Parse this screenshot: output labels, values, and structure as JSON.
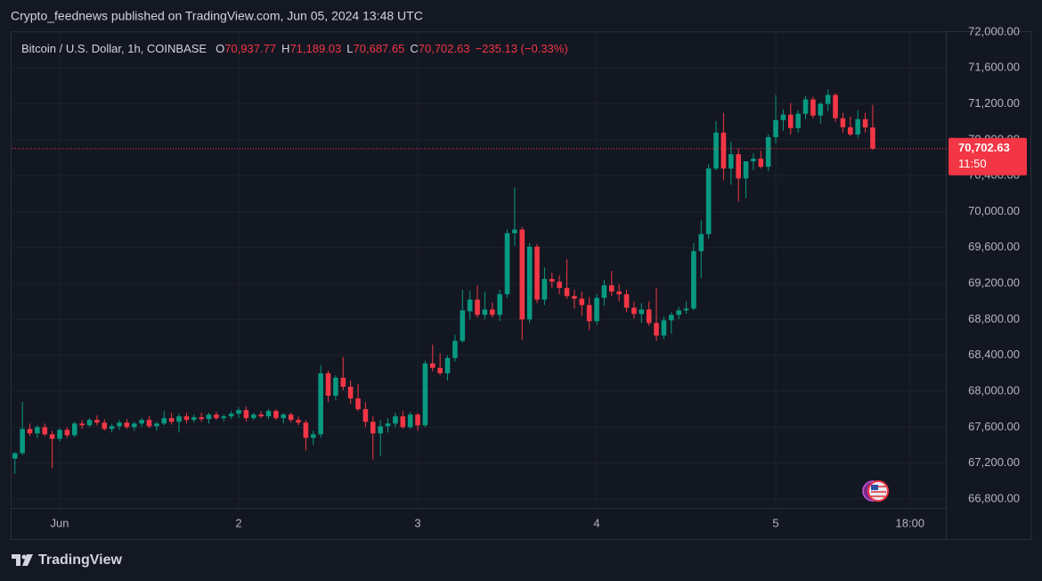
{
  "chart_data": {
    "type": "candlestick",
    "header": "Crypto_feednews published on TradingView.com, Jun 05, 2024 13:48 UTC",
    "symbol": "Bitcoin / U.S. Dollar, 1h, COINBASE",
    "ohlc_legend": [
      {
        "key": "O",
        "value": "70,937.77"
      },
      {
        "key": "H",
        "value": "71,189.03"
      },
      {
        "key": "L",
        "value": "70,687.65"
      },
      {
        "key": "C",
        "value": "70,702.63"
      }
    ],
    "change": "−235.13 (−0.33%)",
    "last_price": {
      "value": 70702.63,
      "label": "70,702.63"
    },
    "countdown": "11:50",
    "brand": "TradingView",
    "up_color": "#089981",
    "down_color": "#f23645",
    "grid": true,
    "x": [
      -6,
      -5,
      -4,
      -3,
      -2,
      -1,
      0,
      1,
      2,
      3,
      4,
      5,
      6,
      7,
      8,
      9,
      10,
      11,
      12,
      13,
      14,
      15,
      16,
      17,
      18,
      19,
      20,
      21,
      22,
      23,
      24,
      25,
      26,
      27,
      28,
      29,
      30,
      31,
      32,
      33,
      34,
      35,
      36,
      37,
      38,
      39,
      40,
      41,
      42,
      43,
      44,
      45,
      46,
      47,
      48,
      49,
      50,
      51,
      52,
      53,
      54,
      55,
      56,
      57,
      58,
      59,
      60,
      61,
      62,
      63,
      64,
      65,
      66,
      67,
      68,
      69,
      70,
      71,
      72,
      73,
      74,
      75,
      76,
      77,
      78,
      79,
      80,
      81,
      82,
      83,
      84,
      85,
      86,
      87,
      88,
      89,
      90,
      91,
      92,
      93,
      94,
      95,
      96,
      97,
      98,
      99,
      100,
      101,
      102,
      103,
      104,
      105,
      106,
      107,
      108,
      109
    ],
    "open": [
      67250,
      67310,
      67580,
      67530,
      67600,
      67520,
      67470,
      67570,
      67510,
      67640,
      67620,
      67680,
      67650,
      67580,
      67610,
      67650,
      67600,
      67640,
      67680,
      67610,
      67640,
      67700,
      67660,
      67720,
      67680,
      67710,
      67690,
      67740,
      67700,
      67720,
      67750,
      67790,
      67700,
      67740,
      67720,
      67780,
      67700,
      67740,
      67680,
      67650,
      67480,
      67520,
      68200,
      67950,
      68150,
      68050,
      67920,
      67800,
      67660,
      67530,
      67610,
      67640,
      67720,
      67600,
      67740,
      67620,
      68310,
      68260,
      68200,
      68370,
      68560,
      68890,
      69020,
      68850,
      68910,
      68850,
      69080,
      69760,
      69800,
      68800,
      69610,
      69020,
      69250,
      69220,
      69150,
      69060,
      69030,
      68960,
      68780,
      69040,
      69180,
      69110,
      69080,
      68930,
      68860,
      68910,
      68760,
      68620,
      68790,
      68850,
      68900,
      68920,
      69560,
      69750,
      70480,
      70880,
      70480,
      70640,
      70370,
      70560,
      70590,
      70500,
      70830,
      71020,
      71080,
      70930,
      71090,
      71250,
      71070,
      71200,
      71300,
      71040,
      70940,
      70860,
      71030,
      70937.77
    ],
    "high": [
      67320,
      67880,
      67640,
      67620,
      67640,
      67560,
      67590,
      67600,
      67660,
      67680,
      67700,
      67730,
      67690,
      67640,
      67680,
      67690,
      67660,
      67700,
      67720,
      67660,
      67780,
      67760,
      67750,
      67760,
      67740,
      67760,
      67760,
      67770,
      67740,
      67780,
      67820,
      67830,
      67760,
      67780,
      67800,
      67800,
      67760,
      67760,
      67720,
      67680,
      67560,
      68290,
      68230,
      68180,
      68380,
      68120,
      68080,
      67880,
      67720,
      67680,
      67700,
      67760,
      67780,
      67770,
      67760,
      68340,
      68520,
      68420,
      68400,
      68630,
      69130,
      69120,
      69180,
      69110,
      68990,
      69130,
      69800,
      70270,
      69830,
      69650,
      69640,
      69380,
      69320,
      69290,
      69470,
      69130,
      69110,
      69050,
      69080,
      69240,
      69340,
      69190,
      69130,
      69000,
      68980,
      69000,
      69150,
      68830,
      68880,
      68940,
      69000,
      69650,
      69900,
      70530,
      71010,
      71100,
      70780,
      70700,
      70560,
      70650,
      70680,
      70860,
      71300,
      71140,
      71210,
      71130,
      71290,
      71280,
      71220,
      71360,
      71320,
      71100,
      71060,
      71130,
      71100,
      71189.03
    ],
    "low": [
      67080,
      67290,
      67500,
      67480,
      67500,
      67140,
      67440,
      67480,
      67490,
      67580,
      67600,
      67620,
      67560,
      67540,
      67570,
      67580,
      67560,
      67600,
      67590,
      67560,
      67620,
      67630,
      67540,
      67640,
      67650,
      67660,
      67640,
      67680,
      67660,
      67690,
      67700,
      67660,
      67680,
      67700,
      67690,
      67680,
      67640,
      67650,
      67620,
      67340,
      67400,
      67480,
      67880,
      67900,
      68010,
      67860,
      67780,
      67600,
      67240,
      67280,
      67540,
      67600,
      67580,
      67580,
      67560,
      67600,
      68220,
      68180,
      68120,
      68330,
      68540,
      68800,
      68820,
      68800,
      68820,
      68780,
      69040,
      69620,
      68570,
      68760,
      68980,
      68960,
      69150,
      69080,
      69030,
      68920,
      68840,
      68680,
      68740,
      68950,
      69060,
      69000,
      68880,
      68810,
      68760,
      68730,
      68560,
      68580,
      68640,
      68800,
      68860,
      68900,
      69260,
      69700,
      70460,
      70350,
      70300,
      70110,
      70150,
      70460,
      70480,
      70450,
      70760,
      70900,
      70860,
      70880,
      71030,
      71040,
      70980,
      71120,
      71000,
      70880,
      70840,
      70820,
      70880,
      70687.65
    ],
    "close": [
      67310,
      67580,
      67530,
      67600,
      67520,
      67470,
      67570,
      67510,
      67640,
      67620,
      67680,
      67650,
      67580,
      67610,
      67650,
      67600,
      67640,
      67680,
      67610,
      67640,
      67700,
      67660,
      67720,
      67680,
      67710,
      67690,
      67740,
      67700,
      67720,
      67750,
      67790,
      67700,
      67740,
      67720,
      67780,
      67700,
      67740,
      67680,
      67650,
      67480,
      67520,
      68200,
      67950,
      68150,
      68050,
      67920,
      67800,
      67660,
      67530,
      67610,
      67640,
      67720,
      67600,
      67740,
      67620,
      68310,
      68260,
      68200,
      68370,
      68560,
      68900,
      69020,
      68850,
      68910,
      68850,
      69080,
      69760,
      69800,
      68800,
      69610,
      69020,
      69250,
      69220,
      69150,
      69060,
      69030,
      68960,
      68780,
      69040,
      69180,
      69110,
      69080,
      68930,
      68860,
      68910,
      68760,
      68620,
      68790,
      68850,
      68900,
      68920,
      69560,
      69750,
      70480,
      70880,
      70480,
      70640,
      70370,
      70560,
      70590,
      70500,
      70830,
      71020,
      71080,
      70930,
      71090,
      71250,
      71070,
      71200,
      71300,
      71040,
      70940,
      70860,
      71030,
      70937.77,
      70702.63
    ],
    "xlim": [
      -6.33,
      118.8
    ],
    "xticks": [
      {
        "value": 0,
        "label": "Jun"
      },
      {
        "value": 24,
        "label": "2"
      },
      {
        "value": 48,
        "label": "3"
      },
      {
        "value": 72,
        "label": "4"
      },
      {
        "value": 96,
        "label": "5"
      },
      {
        "value": 114,
        "label": "18:00"
      }
    ],
    "ylim": [
      66700,
      72000
    ],
    "yticks": [
      {
        "value": 66800,
        "label": "66,800.00"
      },
      {
        "value": 67200,
        "label": "67,200.00"
      },
      {
        "value": 67600,
        "label": "67,600.00"
      },
      {
        "value": 68000,
        "label": "68,000.00"
      },
      {
        "value": 68400,
        "label": "68,400.00"
      },
      {
        "value": 68800,
        "label": "68,800.00"
      },
      {
        "value": 69200,
        "label": "69,200.00"
      },
      {
        "value": 69600,
        "label": "69,600.00"
      },
      {
        "value": 70000,
        "label": "70,000.00"
      },
      {
        "value": 70400,
        "label": "70,400.00"
      },
      {
        "value": 70800,
        "label": "70,800.00"
      },
      {
        "value": 71200,
        "label": "71,200.00"
      },
      {
        "value": 71600,
        "label": "71,600.00"
      },
      {
        "value": 72000,
        "label": "72,000.00"
      }
    ]
  }
}
